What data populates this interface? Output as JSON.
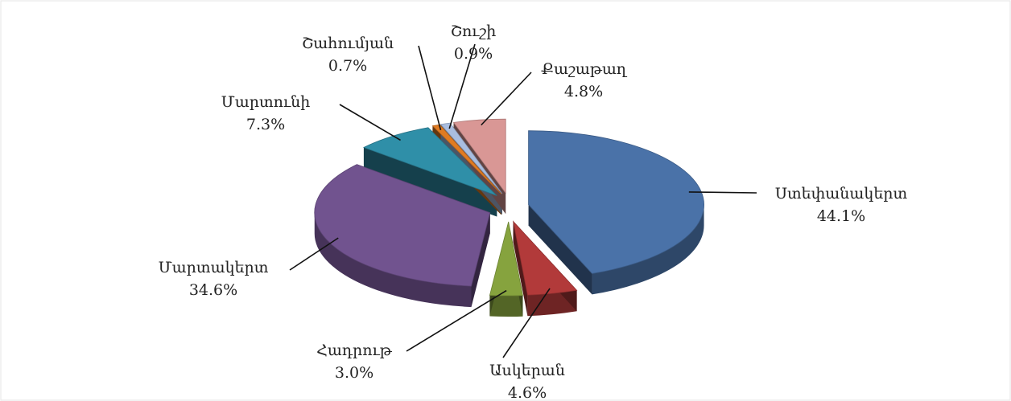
{
  "chart_data": {
    "type": "pie",
    "categories": [
      "Ստեփանակերտ",
      "Ասկերան",
      "Հադրութ",
      "Մարտակերտ",
      "Մարտունի",
      "Շահումյան",
      "Շուշի",
      "Քաշաթաղ"
    ],
    "values": [
      44.1,
      4.6,
      3.0,
      34.6,
      7.3,
      0.7,
      0.9,
      4.8
    ],
    "value_labels": [
      "44.1%",
      "4.6%",
      "3.0%",
      "34.6%",
      "7.3%",
      "0.7%",
      "0.9%",
      "4.8%"
    ],
    "colors": [
      "#4a72a8",
      "#b23a3a",
      "#86a33e",
      "#71538f",
      "#2f8fa8",
      "#e07b22",
      "#a9bddf",
      "#d99795"
    ]
  }
}
